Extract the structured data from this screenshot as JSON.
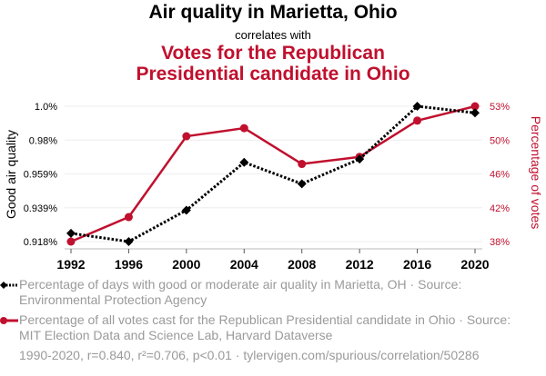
{
  "titles": {
    "main": "Air quality in Marietta, Ohio",
    "connector": "correlates with",
    "secondary": "Votes for the Republican Presidential candidate in Ohio"
  },
  "legend": [
    {
      "text": "Percentage of days with good or moderate air quality in Marietta, OH · Source: Environmental Protection Agency",
      "color": "#000000",
      "marker": "diamond",
      "line": "dotted"
    },
    {
      "text": "Percentage of all votes cast for the Republican Presidential candidate in Ohio · Source: MIT Election Data and Science Lab, Harvard Dataverse",
      "color": "#c0102e",
      "marker": "circle",
      "line": "solid"
    }
  ],
  "footer": "1990-2020, r=0.840, r²=0.706, p<0.01 · tylervigen.com/spurious/correlation/50286",
  "chart_data": {
    "type": "line",
    "title": "Air quality in Marietta, Ohio correlates with Votes for the Republican Presidential candidate in Ohio",
    "x": [
      "1992",
      "1996",
      "2000",
      "2004",
      "2008",
      "2012",
      "2016",
      "2020"
    ],
    "xlabel": "",
    "grid": true,
    "legend_position": "bottom",
    "series": [
      {
        "name": "Percentage of days with good or moderate air quality in Marietta, OH",
        "axis": "left",
        "color": "#000000",
        "values": [
          0.923,
          0.918,
          0.937,
          0.966,
          0.953,
          0.968,
          1.0,
          0.996
        ]
      },
      {
        "name": "Percentage of all votes cast for the Republican Presidential candidate in Ohio",
        "axis": "right",
        "color": "#c0102e",
        "values": [
          38.35,
          41.05,
          49.96,
          50.86,
          46.91,
          47.69,
          51.69,
          53.27
        ]
      }
    ],
    "left_axis": {
      "label": "Good air quality",
      "range": [
        0.918,
        1.0
      ],
      "ticks": [
        {
          "value": 1.0,
          "label": "1.0%"
        },
        {
          "value": 0.9795,
          "label": "0.98%"
        },
        {
          "value": 0.959,
          "label": "0.959%"
        },
        {
          "value": 0.9385,
          "label": "0.939%"
        },
        {
          "value": 0.918,
          "label": "0.918%"
        }
      ]
    },
    "right_axis": {
      "label": "Percentage of votes",
      "color": "#c0102e",
      "range": [
        38.35,
        53.27
      ],
      "ticks": [
        {
          "value": 53.27,
          "label": "53%"
        },
        {
          "value": 49.54,
          "label": "50%"
        },
        {
          "value": 45.81,
          "label": "46%"
        },
        {
          "value": 42.08,
          "label": "42%"
        },
        {
          "value": 38.35,
          "label": "38%"
        }
      ]
    }
  }
}
